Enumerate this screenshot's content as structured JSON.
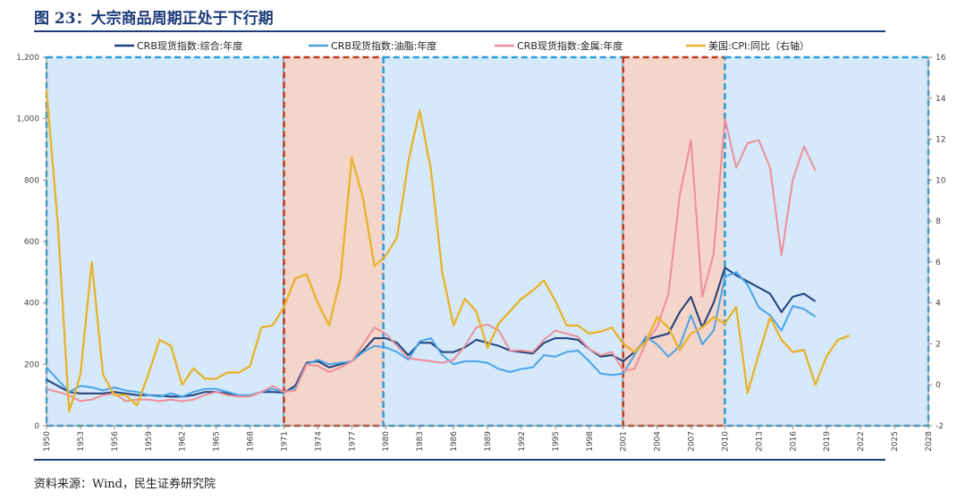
{
  "figure_title": "图 23：大宗商品周期正处于下行期",
  "source_note": "资料来源：Wind，民生证券研究院",
  "chart_data": {
    "type": "line",
    "title": "图 23：大宗商品周期正处于下行期",
    "xlabel": "",
    "ylabel": "",
    "xlim": [
      1950,
      2028
    ],
    "x_ticks": [
      1950,
      1953,
      1956,
      1959,
      1962,
      1965,
      1968,
      1971,
      1974,
      1977,
      1980,
      1983,
      1986,
      1989,
      1992,
      1995,
      1998,
      2001,
      2004,
      2007,
      2010,
      2013,
      2016,
      2019,
      2022,
      2025,
      2028
    ],
    "y_left": {
      "lim": [
        0,
        1200
      ],
      "ticks": [
        0,
        200,
        400,
        600,
        800,
        1000,
        1200
      ],
      "tick_labels": [
        "0",
        "200",
        "400",
        "600",
        "800",
        "1,000",
        "1,200"
      ]
    },
    "y_right": {
      "lim": [
        -2,
        16
      ],
      "ticks": [
        -2,
        0,
        2,
        4,
        6,
        8,
        10,
        12,
        14,
        16
      ],
      "tick_labels": [
        "-2",
        "0",
        "2",
        "4",
        "6",
        "8",
        "10",
        "12",
        "14",
        "16"
      ]
    },
    "legend_position": "top",
    "grid": false,
    "shaded_periods": [
      {
        "from": 1950,
        "to": 1971,
        "color": "#d6e9fa",
        "border": "#2aa1dc"
      },
      {
        "from": 1971,
        "to": 1979.8,
        "color": "#f4d5ca",
        "border": "#c0391b"
      },
      {
        "from": 1979.8,
        "to": 2001,
        "color": "#d6e9fa",
        "border": "#2aa1dc"
      },
      {
        "from": 2001,
        "to": 2010,
        "color": "#f4d5ca",
        "border": "#c0391b"
      },
      {
        "from": 2010,
        "to": 2028,
        "color": "#d6e9fa",
        "border": "#2aa1dc"
      }
    ],
    "series": [
      {
        "name": "CRB现货指数:综合:年度",
        "axis": "left",
        "color": "#1f3f7a",
        "points": [
          [
            1950,
            150
          ],
          [
            1951,
            130
          ],
          [
            1952,
            110
          ],
          [
            1953,
            105
          ],
          [
            1954,
            105
          ],
          [
            1955,
            105
          ],
          [
            1956,
            110
          ],
          [
            1957,
            105
          ],
          [
            1958,
            100
          ],
          [
            1959,
            100
          ],
          [
            1960,
            98
          ],
          [
            1961,
            95
          ],
          [
            1962,
            95
          ],
          [
            1963,
            100
          ],
          [
            1964,
            110
          ],
          [
            1965,
            110
          ],
          [
            1966,
            105
          ],
          [
            1967,
            100
          ],
          [
            1968,
            98
          ],
          [
            1969,
            110
          ],
          [
            1970,
            110
          ],
          [
            1971,
            108
          ],
          [
            1972,
            130
          ],
          [
            1973,
            205
          ],
          [
            1974,
            210
          ],
          [
            1975,
            190
          ],
          [
            1976,
            200
          ],
          [
            1977,
            210
          ],
          [
            1978,
            245
          ],
          [
            1979,
            285
          ],
          [
            1980,
            285
          ],
          [
            1981,
            270
          ],
          [
            1982,
            230
          ],
          [
            1983,
            270
          ],
          [
            1984,
            270
          ],
          [
            1985,
            240
          ],
          [
            1986,
            240
          ],
          [
            1987,
            255
          ],
          [
            1988,
            280
          ],
          [
            1989,
            270
          ],
          [
            1990,
            260
          ],
          [
            1991,
            245
          ],
          [
            1992,
            240
          ],
          [
            1993,
            235
          ],
          [
            1994,
            270
          ],
          [
            1995,
            285
          ],
          [
            1996,
            285
          ],
          [
            1997,
            280
          ],
          [
            1998,
            250
          ],
          [
            1999,
            225
          ],
          [
            2000,
            230
          ],
          [
            2001,
            210
          ],
          [
            2002,
            240
          ],
          [
            2003,
            280
          ],
          [
            2004,
            290
          ],
          [
            2005,
            300
          ],
          [
            2006,
            370
          ],
          [
            2007,
            420
          ],
          [
            2008,
            320
          ],
          [
            2009,
            400
          ],
          [
            2010,
            515
          ],
          [
            2011,
            490
          ],
          [
            2012,
            470
          ],
          [
            2013,
            450
          ],
          [
            2014,
            430
          ],
          [
            2015,
            370
          ],
          [
            2016,
            420
          ],
          [
            2017,
            430
          ],
          [
            2018,
            405
          ]
        ]
      },
      {
        "name": "CRB现货指数:油脂:年度",
        "axis": "left",
        "color": "#4aa3e6",
        "points": [
          [
            1950,
            190
          ],
          [
            1951,
            150
          ],
          [
            1952,
            110
          ],
          [
            1953,
            130
          ],
          [
            1954,
            125
          ],
          [
            1955,
            115
          ],
          [
            1956,
            125
          ],
          [
            1957,
            115
          ],
          [
            1958,
            110
          ],
          [
            1959,
            100
          ],
          [
            1960,
            95
          ],
          [
            1961,
            105
          ],
          [
            1962,
            95
          ],
          [
            1963,
            110
          ],
          [
            1964,
            120
          ],
          [
            1965,
            120
          ],
          [
            1966,
            110
          ],
          [
            1967,
            100
          ],
          [
            1968,
            100
          ],
          [
            1969,
            110
          ],
          [
            1970,
            120
          ],
          [
            1971,
            110
          ],
          [
            1972,
            120
          ],
          [
            1973,
            200
          ],
          [
            1974,
            215
          ],
          [
            1975,
            200
          ],
          [
            1976,
            205
          ],
          [
            1977,
            210
          ],
          [
            1978,
            240
          ],
          [
            1979,
            260
          ],
          [
            1980,
            255
          ],
          [
            1981,
            240
          ],
          [
            1982,
            215
          ],
          [
            1983,
            275
          ],
          [
            1984,
            285
          ],
          [
            1985,
            230
          ],
          [
            1986,
            200
          ],
          [
            1987,
            210
          ],
          [
            1988,
            210
          ],
          [
            1989,
            205
          ],
          [
            1990,
            185
          ],
          [
            1991,
            175
          ],
          [
            1992,
            185
          ],
          [
            1993,
            190
          ],
          [
            1994,
            230
          ],
          [
            1995,
            225
          ],
          [
            1996,
            240
          ],
          [
            1997,
            245
          ],
          [
            1998,
            210
          ],
          [
            1999,
            170
          ],
          [
            2000,
            165
          ],
          [
            2001,
            170
          ],
          [
            2002,
            230
          ],
          [
            2003,
            290
          ],
          [
            2004,
            265
          ],
          [
            2005,
            225
          ],
          [
            2006,
            260
          ],
          [
            2007,
            360
          ],
          [
            2008,
            265
          ],
          [
            2009,
            310
          ],
          [
            2010,
            485
          ],
          [
            2011,
            500
          ],
          [
            2012,
            460
          ],
          [
            2013,
            385
          ],
          [
            2014,
            360
          ],
          [
            2015,
            310
          ],
          [
            2016,
            390
          ],
          [
            2017,
            380
          ],
          [
            2018,
            355
          ]
        ]
      },
      {
        "name": "CRB现货指数:金属:年度",
        "axis": "left",
        "color": "#ec8f99",
        "points": [
          [
            1950,
            120
          ],
          [
            1951,
            110
          ],
          [
            1952,
            100
          ],
          [
            1953,
            80
          ],
          [
            1954,
            85
          ],
          [
            1955,
            100
          ],
          [
            1956,
            105
          ],
          [
            1957,
            80
          ],
          [
            1958,
            85
          ],
          [
            1959,
            85
          ],
          [
            1960,
            80
          ],
          [
            1961,
            85
          ],
          [
            1962,
            80
          ],
          [
            1963,
            85
          ],
          [
            1964,
            100
          ],
          [
            1965,
            110
          ],
          [
            1966,
            100
          ],
          [
            1967,
            95
          ],
          [
            1968,
            95
          ],
          [
            1969,
            110
          ],
          [
            1970,
            130
          ],
          [
            1971,
            110
          ],
          [
            1972,
            115
          ],
          [
            1973,
            200
          ],
          [
            1974,
            195
          ],
          [
            1975,
            175
          ],
          [
            1976,
            190
          ],
          [
            1977,
            210
          ],
          [
            1978,
            265
          ],
          [
            1979,
            320
          ],
          [
            1980,
            300
          ],
          [
            1981,
            260
          ],
          [
            1982,
            220
          ],
          [
            1983,
            215
          ],
          [
            1984,
            210
          ],
          [
            1985,
            205
          ],
          [
            1986,
            215
          ],
          [
            1987,
            260
          ],
          [
            1988,
            320
          ],
          [
            1989,
            330
          ],
          [
            1990,
            310
          ],
          [
            1991,
            245
          ],
          [
            1992,
            245
          ],
          [
            1993,
            240
          ],
          [
            1994,
            280
          ],
          [
            1995,
            310
          ],
          [
            1996,
            300
          ],
          [
            1997,
            290
          ],
          [
            1998,
            250
          ],
          [
            1999,
            230
          ],
          [
            2000,
            240
          ],
          [
            2001,
            180
          ],
          [
            2002,
            185
          ],
          [
            2003,
            270
          ],
          [
            2004,
            320
          ],
          [
            2005,
            430
          ],
          [
            2006,
            750
          ],
          [
            2007,
            930
          ],
          [
            2008,
            420
          ],
          [
            2009,
            560
          ],
          [
            2010,
            1000
          ],
          [
            2011,
            840
          ],
          [
            2012,
            920
          ],
          [
            2013,
            930
          ],
          [
            2014,
            840
          ],
          [
            2015,
            555
          ],
          [
            2016,
            800
          ],
          [
            2017,
            910
          ],
          [
            2018,
            830
          ]
        ]
      },
      {
        "name": "美国:CPI:同比（右轴）",
        "axis": "right",
        "color": "#e7b431",
        "points": [
          [
            1950,
            14.4
          ],
          [
            1951,
            7.9
          ],
          [
            1952,
            -1.3
          ],
          [
            1953,
            0.5
          ],
          [
            1954,
            6.0
          ],
          [
            1955,
            0.5
          ],
          [
            1956,
            -0.5
          ],
          [
            1957,
            -0.5
          ],
          [
            1958,
            -1.0
          ],
          [
            1959,
            0.5
          ],
          [
            1960,
            2.2
          ],
          [
            1961,
            1.9
          ],
          [
            1962,
            0.0
          ],
          [
            1963,
            0.8
          ],
          [
            1964,
            0.3
          ],
          [
            1965,
            0.3
          ],
          [
            1966,
            0.6
          ],
          [
            1967,
            0.6
          ],
          [
            1968,
            0.9
          ],
          [
            1969,
            2.8
          ],
          [
            1970,
            2.9
          ],
          [
            1971,
            3.8
          ],
          [
            1972,
            5.2
          ],
          [
            1973,
            5.4
          ],
          [
            1974,
            4.0
          ],
          [
            1975,
            2.9
          ],
          [
            1976,
            5.2
          ],
          [
            1977,
            11.1
          ],
          [
            1978,
            9.1
          ],
          [
            1979,
            5.8
          ],
          [
            1980,
            6.3
          ],
          [
            1981,
            7.2
          ],
          [
            1982,
            10.9
          ],
          [
            1983,
            13.4
          ],
          [
            1984,
            10.5
          ],
          [
            1985,
            5.5
          ],
          [
            1986,
            2.9
          ],
          [
            1987,
            4.2
          ],
          [
            1988,
            3.6
          ],
          [
            1989,
            1.8
          ],
          [
            1990,
            3.0
          ],
          [
            1991,
            3.6
          ],
          [
            1992,
            4.2
          ],
          [
            1993,
            4.6
          ],
          [
            1994,
            5.1
          ],
          [
            1995,
            4.1
          ],
          [
            1996,
            2.9
          ],
          [
            1997,
            2.9
          ],
          [
            1998,
            2.5
          ],
          [
            1999,
            2.6
          ],
          [
            2000,
            2.8
          ],
          [
            2001,
            2.0
          ],
          [
            2002,
            1.6
          ],
          [
            2003,
            2.1
          ],
          [
            2004,
            3.3
          ],
          [
            2005,
            2.8
          ],
          [
            2006,
            1.7
          ],
          [
            2007,
            2.5
          ],
          [
            2008,
            2.8
          ],
          [
            2009,
            3.3
          ],
          [
            2010,
            3.0
          ],
          [
            2011,
            3.8
          ],
          [
            2012,
            -0.4
          ],
          [
            2013,
            1.5
          ],
          [
            2014,
            3.3
          ],
          [
            2015,
            2.2
          ],
          [
            2016,
            1.6
          ],
          [
            2017,
            1.7
          ],
          [
            2018,
            0.0
          ],
          [
            2019,
            1.4
          ],
          [
            2020,
            2.2
          ],
          [
            2021,
            2.4
          ]
        ]
      }
    ]
  }
}
